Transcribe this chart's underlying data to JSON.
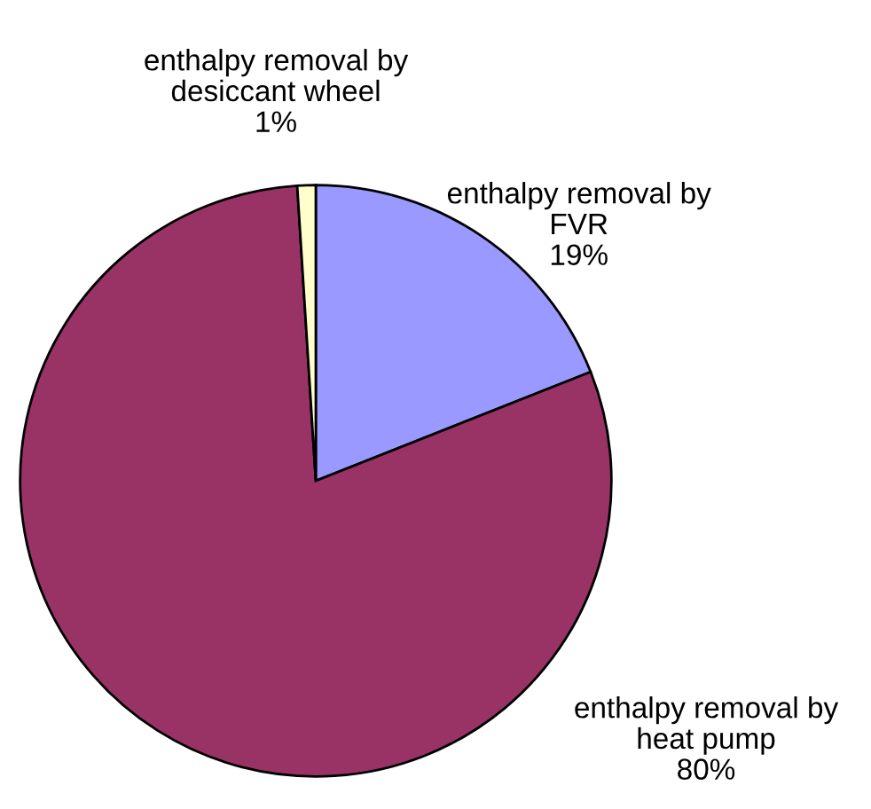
{
  "chart_data": {
    "type": "pie",
    "categories": [
      "enthalpy removal by\nFVR",
      "enthalpy removal by\nheat pump",
      "enthalpy removal by\ndesiccant wheel"
    ],
    "values": [
      19,
      80,
      1
    ],
    "colors": [
      "#9999ff",
      "#993366",
      "#ffffcc"
    ],
    "value_labels": [
      "19%",
      "80%",
      "1%"
    ],
    "legend": false
  }
}
